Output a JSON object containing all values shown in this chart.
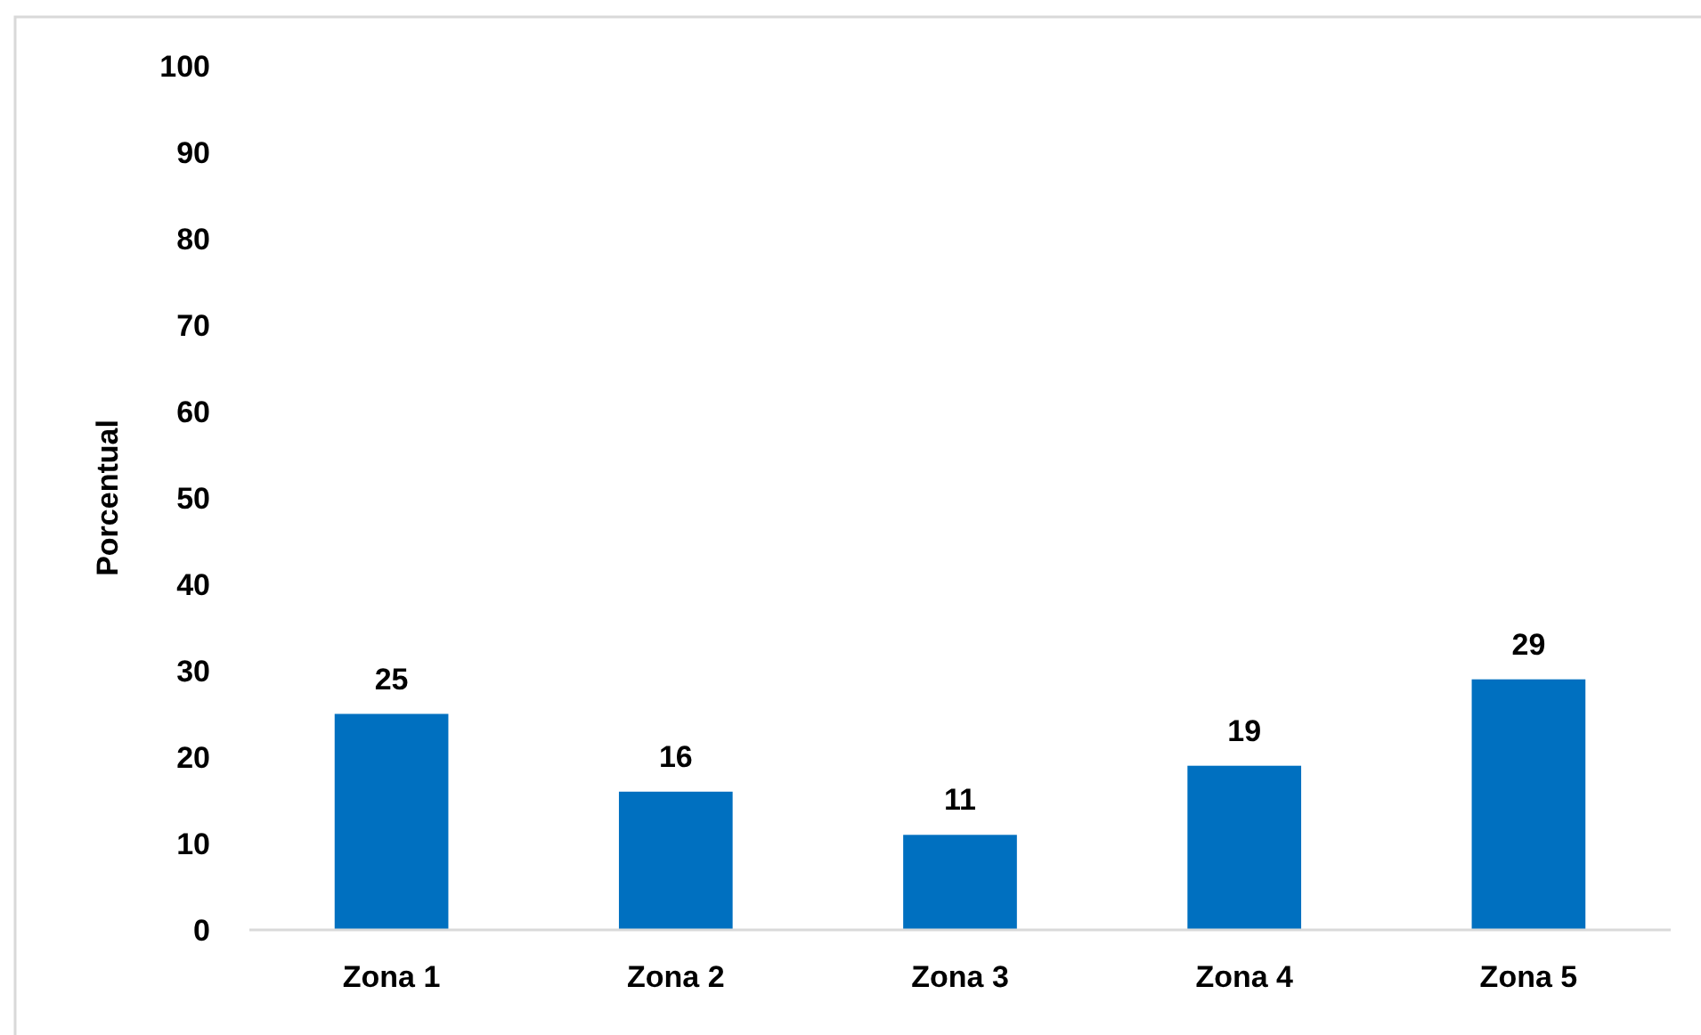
{
  "chart_data": {
    "type": "bar",
    "ylabel": "Porcentual",
    "categories": [
      "Zona 1",
      "Zona 2",
      "Zona 3",
      "Zona 4",
      "Zona 5"
    ],
    "values": [
      25,
      16,
      11,
      19,
      29
    ],
    "color": "#0070c0",
    "ylim": [
      0,
      100
    ],
    "yticks": [
      0,
      10,
      20,
      30,
      40,
      50,
      60,
      70,
      80,
      90,
      100
    ],
    "data_labels": true
  }
}
